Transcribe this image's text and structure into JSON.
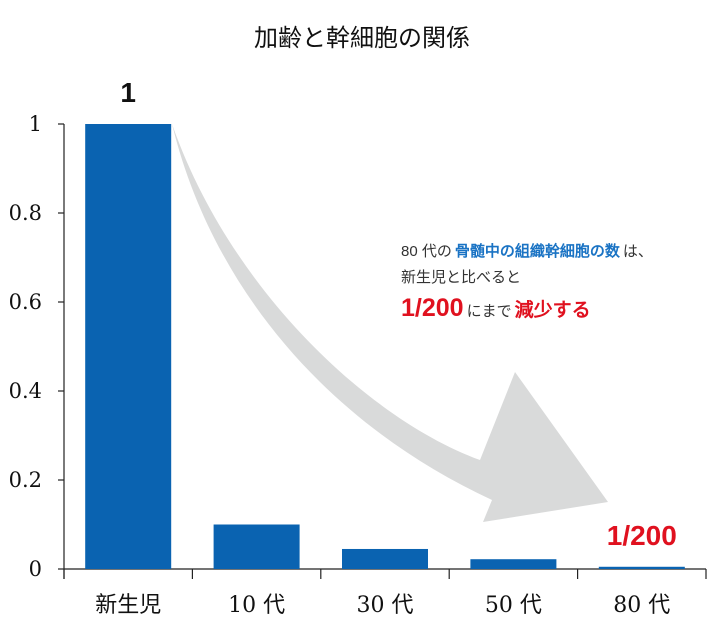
{
  "chart_data": {
    "type": "bar",
    "title": "加齢と幹細胞の関係",
    "xlabel": "",
    "ylabel": "",
    "ylim": [
      0,
      1
    ],
    "categories": [
      "新生児",
      "10 代",
      "30 代",
      "50 代",
      "80 代"
    ],
    "values": [
      1,
      0.1,
      0.045,
      0.022,
      0.005
    ],
    "yticks": [
      "0",
      "0.2",
      "0.4",
      "0.6",
      "0.8",
      "1"
    ],
    "bar_color": "#0a63b1",
    "grid": false,
    "data_labels": [
      {
        "category": "新生児",
        "text": "1",
        "color": "#111111"
      },
      {
        "category": "80 代",
        "text": "1/200",
        "color": "#e0111f"
      }
    ],
    "annotation": {
      "arrow_color": "#d9dada",
      "line1": [
        {
          "text": "80 代の",
          "style": "plain"
        },
        {
          "text": "骨髄中の組織幹細胞の数",
          "style": "blue"
        },
        {
          "text": "は、",
          "style": "plain"
        }
      ],
      "line2": [
        {
          "text": "新生児と比べると",
          "style": "plain"
        }
      ],
      "line3": [
        {
          "text": "1/200",
          "style": "red-big"
        },
        {
          "text": "にまで",
          "style": "plain"
        },
        {
          "text": "減少する",
          "style": "red"
        }
      ],
      "colors": {
        "blue": "#1a73c4",
        "red": "#e0111f",
        "plain": "#333333"
      }
    }
  }
}
